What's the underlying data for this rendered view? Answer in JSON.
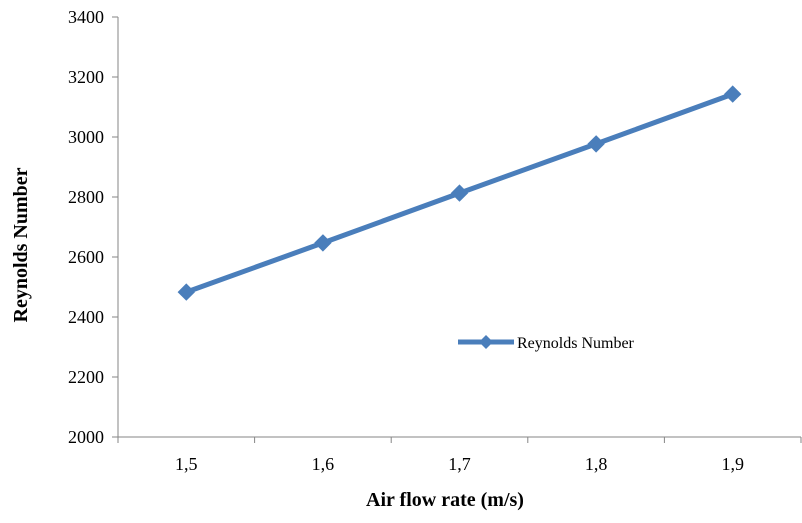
{
  "chart_data": {
    "type": "line",
    "title": "",
    "xlabel": "Air flow rate (m/s)",
    "ylabel": "Reynolds Number",
    "categories": [
      "1,5",
      "1,6",
      "1,7",
      "1,8",
      "1,9"
    ],
    "series": [
      {
        "name": "Reynolds Number",
        "values": [
          2483,
          2647,
          2813,
          2977,
          3143
        ],
        "color": "#4a7ebb",
        "marker": "diamond"
      }
    ],
    "ylim": [
      2000,
      3400
    ],
    "yticks": [
      2000,
      2200,
      2400,
      2600,
      2800,
      3000,
      3200,
      3400
    ],
    "ytick_labels": [
      "2000",
      "2200",
      "2400",
      "2600",
      "2800",
      "3000",
      "3200",
      "3400"
    ],
    "grid": false,
    "legend_position": "inside-right"
  }
}
